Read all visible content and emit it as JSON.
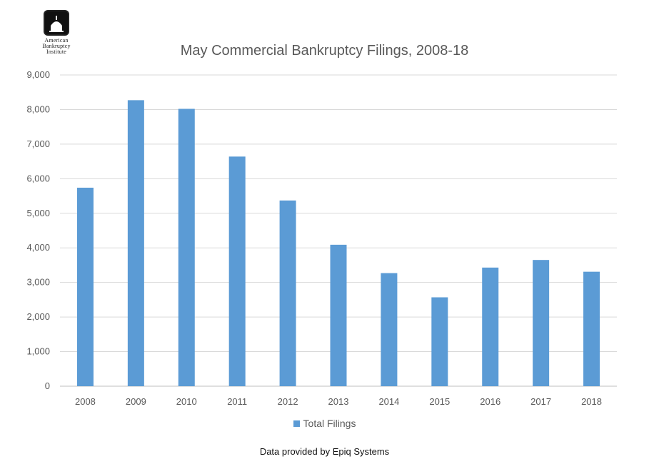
{
  "logo": {
    "lines": [
      "American",
      "Bankruptcy",
      "Institute"
    ]
  },
  "source_note": "Data provided by Epiq Systems",
  "colors": {
    "bar": "#5b9bd5",
    "grid": "#d9d9d9",
    "text": "#595959"
  },
  "chart_data": {
    "type": "bar",
    "title": "May Commercial Bankruptcy Filings, 2008-18",
    "xlabel": "",
    "ylabel": "",
    "categories": [
      "2008",
      "2009",
      "2010",
      "2011",
      "2012",
      "2013",
      "2014",
      "2015",
      "2016",
      "2017",
      "2018"
    ],
    "series": [
      {
        "name": "Total Filings",
        "values": [
          5740,
          8270,
          8020,
          6640,
          5370,
          4090,
          3270,
          2570,
          3430,
          3650,
          3310
        ]
      }
    ],
    "ylim": [
      0,
      9000
    ],
    "yticks": [
      "0",
      "1,000",
      "2,000",
      "3,000",
      "4,000",
      "5,000",
      "6,000",
      "7,000",
      "8,000",
      "9,000"
    ],
    "grid": true,
    "legend_position": "bottom"
  }
}
